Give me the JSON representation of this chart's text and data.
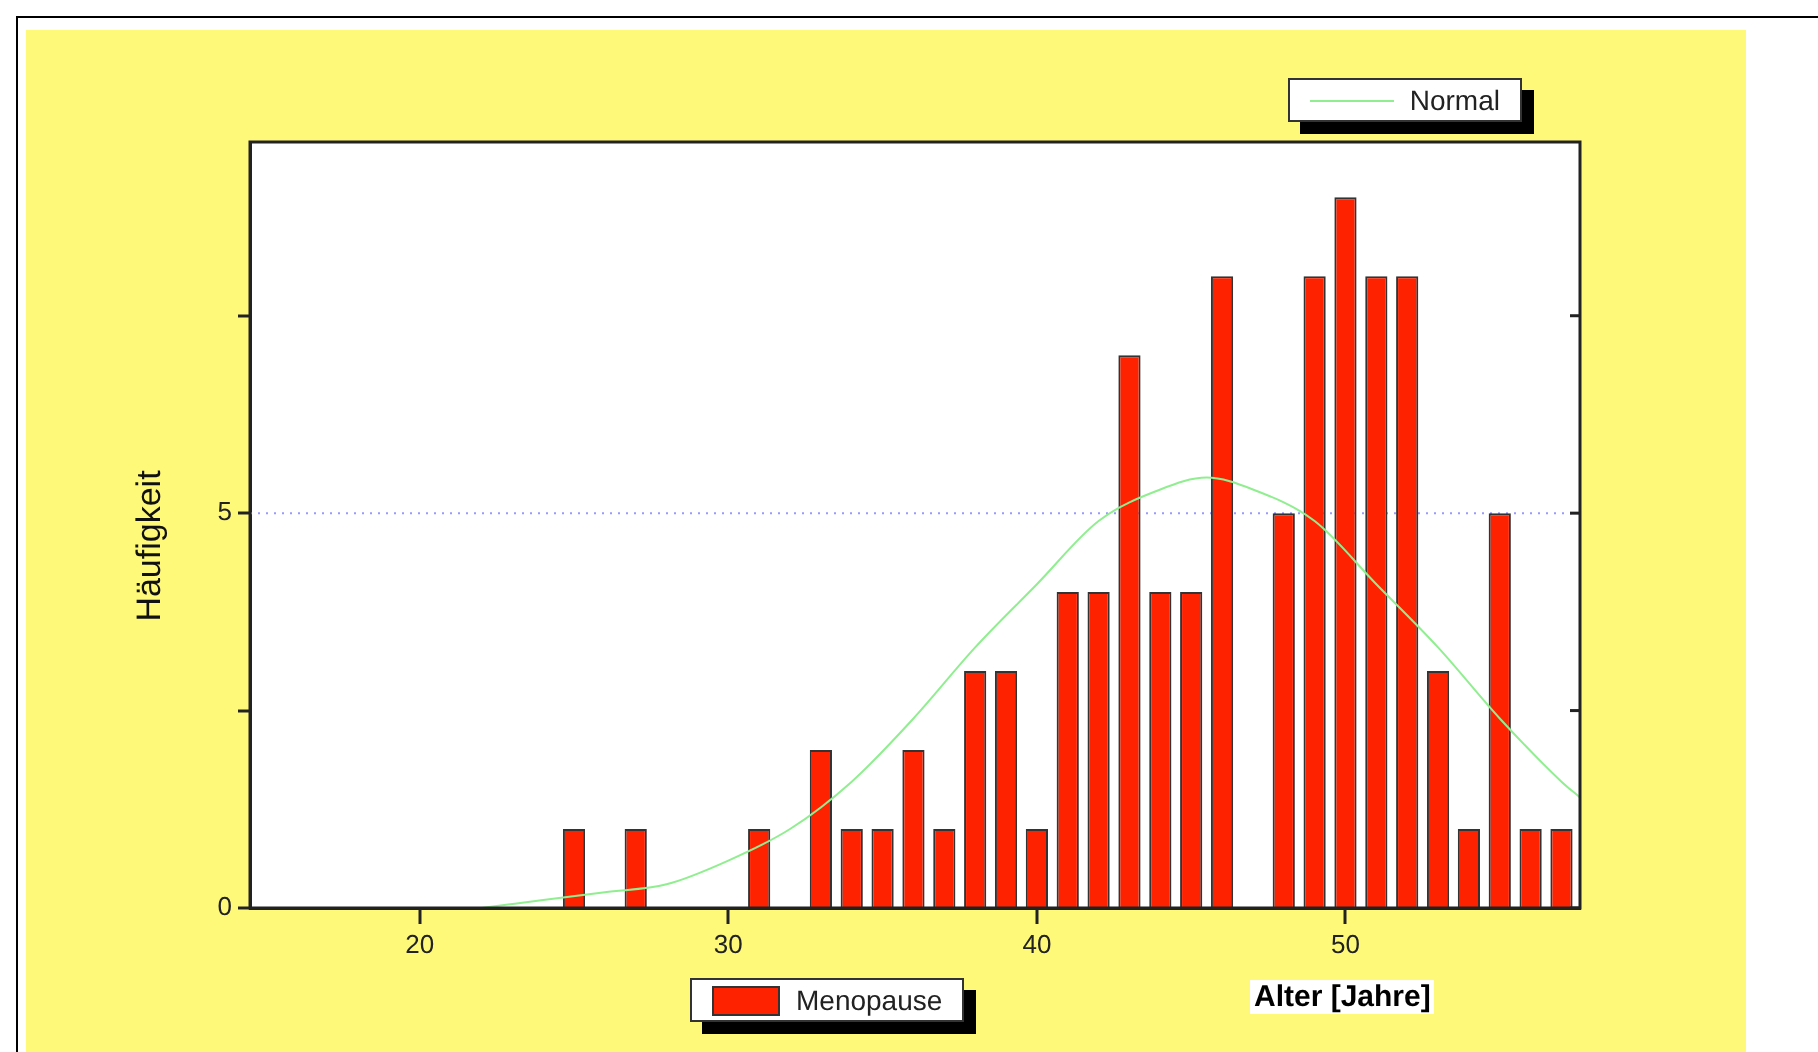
{
  "chart_data": {
    "type": "bar",
    "xlabel": "Alter [Jahre]",
    "ylabel": "Häufigkeit",
    "x": [
      25,
      27,
      31,
      33,
      34,
      35,
      36,
      37,
      38,
      39,
      40,
      41,
      42,
      43,
      44,
      45,
      46,
      48,
      49,
      50,
      51,
      52,
      53,
      54,
      55,
      56,
      57
    ],
    "series": [
      {
        "name": "Menopause",
        "color": "#ff2200",
        "values": [
          1,
          1,
          1,
          2,
          1,
          1,
          2,
          1,
          3,
          3,
          1,
          4,
          4,
          7,
          4,
          4,
          8,
          5,
          8,
          9,
          8,
          8,
          3,
          1,
          5,
          1,
          1
        ]
      },
      {
        "name": "Normal",
        "type": "line",
        "color": "#90ee90",
        "x": [
          22,
          24,
          26,
          28,
          30,
          32,
          34,
          36,
          38,
          40,
          42,
          44,
          45.5,
          47,
          49,
          51,
          53,
          55,
          57,
          57.6
        ],
        "values": [
          0.0,
          0.1,
          0.2,
          0.3,
          0.6,
          1.0,
          1.6,
          2.4,
          3.3,
          4.1,
          4.9,
          5.3,
          5.45,
          5.3,
          4.9,
          4.1,
          3.3,
          2.4,
          1.6,
          1.4
        ]
      }
    ],
    "xlim": [
      14.5,
      57.6
    ],
    "xticks": [
      20,
      30,
      40,
      50
    ],
    "ylim": [
      0,
      9.7
    ],
    "yticks": [
      0,
      {
        "value": 2.5,
        "label": null
      },
      5,
      {
        "value": 7.5,
        "label": null
      }
    ],
    "ref_lines": [
      {
        "axis": "y",
        "value": 5,
        "color": "#9999ff",
        "line_style": "dotted"
      }
    ],
    "legend": "bottom right",
    "marker": "none"
  }
}
